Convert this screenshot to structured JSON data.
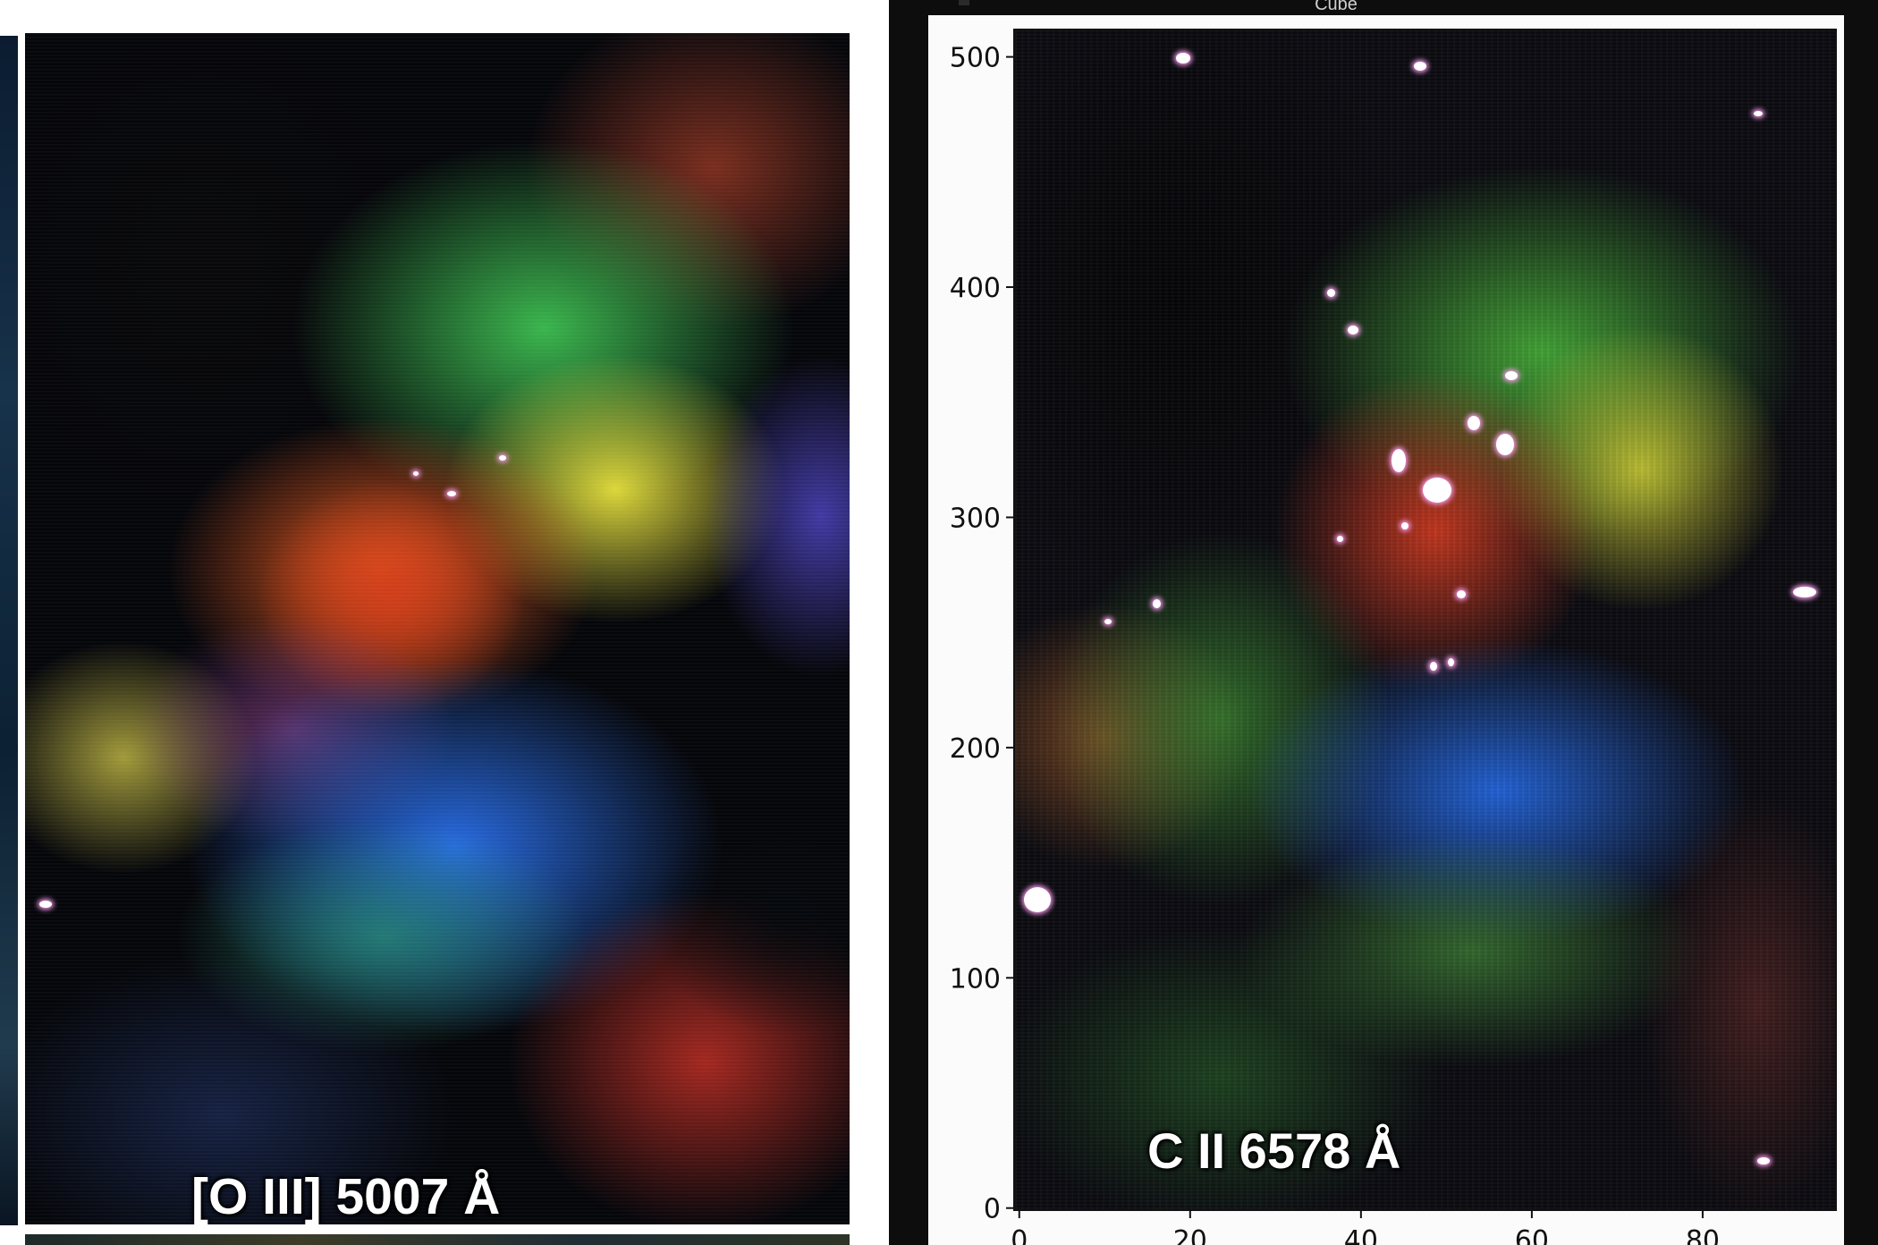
{
  "left_panel": {
    "caption": "[O III] 5007 Å"
  },
  "right_window": {
    "title": "Cube",
    "caption": "C II 6578 Å",
    "x_ticks": [
      "0",
      "20",
      "40",
      "60",
      "80"
    ],
    "y_ticks": [
      "0",
      "100",
      "200",
      "300",
      "400",
      "500"
    ],
    "xlim": [
      -0.5,
      95.5
    ],
    "ylim": [
      -0.5,
      511.5
    ]
  },
  "colors": {
    "emission_red": "#e0521e",
    "emission_green": "#3fbf3a",
    "emission_blue": "#2f6fe8",
    "emission_yellow": "#e6e23a",
    "star_pink": "#ff9cf0"
  }
}
